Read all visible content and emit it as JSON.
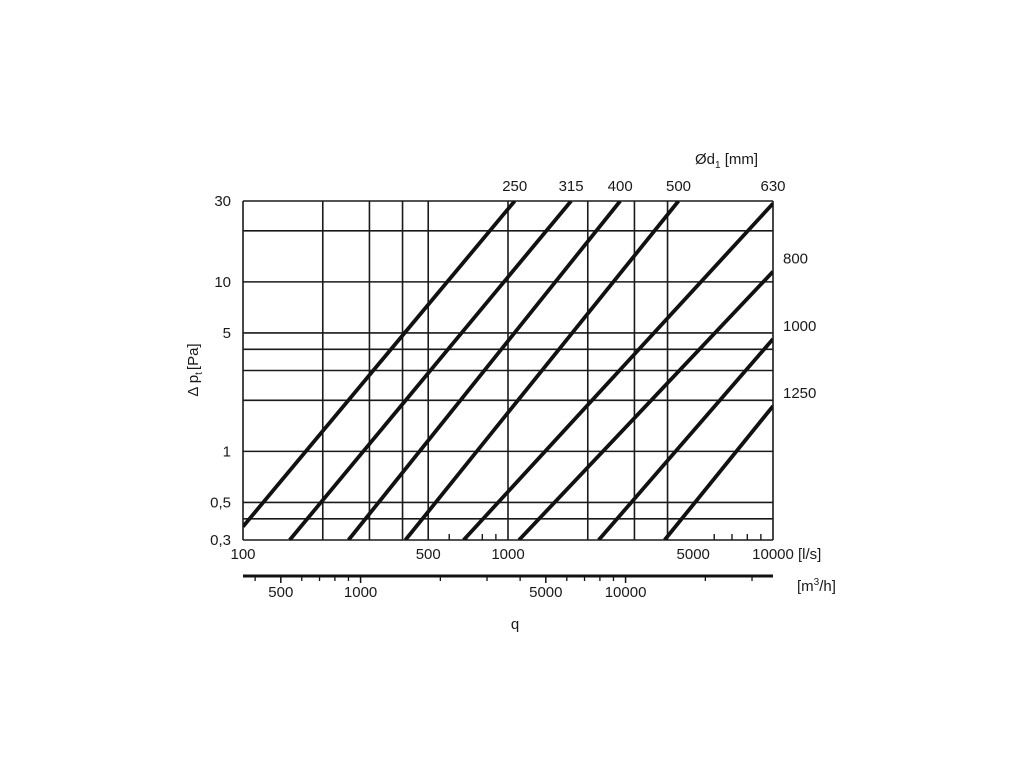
{
  "chart_data": {
    "type": "line",
    "title": "",
    "xlabel": "q",
    "ylabel": "Δ p",
    "ylabel_sub": "t",
    "ylabel_unit": "[Pa]",
    "x_scale": "log",
    "y_scale": "log",
    "xlim": [
      100,
      10000
    ],
    "ylim": [
      0.3,
      30
    ],
    "x_unit": "[l/s]",
    "x2_unit_pre": "[m",
    "x2_unit_sup": "3",
    "x2_unit_post": "/h]",
    "series_title_pre": "Ød",
    "series_title_sub": "1",
    "series_title_post": " [mm]",
    "y_ticks": [
      {
        "value": 30,
        "label": "30"
      },
      {
        "value": 10,
        "label": "10"
      },
      {
        "value": 5,
        "label": "5"
      },
      {
        "value": 1,
        "label": "1"
      },
      {
        "value": 0.5,
        "label": "0,5"
      },
      {
        "value": 0.3,
        "label": "0,3"
      }
    ],
    "y_grid": [
      30,
      20,
      10,
      5,
      4,
      3,
      2,
      1,
      0.5,
      0.4,
      0.3
    ],
    "x_ticks": [
      {
        "value": 100,
        "label": "100"
      },
      {
        "value": 500,
        "label": "500"
      },
      {
        "value": 1000,
        "label": "1000"
      },
      {
        "value": 5000,
        "label": "5000"
      },
      {
        "value": 10000,
        "label": "10000"
      }
    ],
    "x_grid": [
      100,
      200,
      300,
      400,
      500,
      1000,
      2000,
      3000,
      4000,
      10000
    ],
    "x_minor_ticks": [
      600,
      700,
      800,
      900,
      6000,
      7000,
      8000,
      9000
    ],
    "x2_ticks": [
      {
        "value": 500,
        "label": "500"
      },
      {
        "value": 1000,
        "label": "1000"
      },
      {
        "value": 5000,
        "label": "5000"
      },
      {
        "value": 10000,
        "label": "10000"
      }
    ],
    "x2_minor_ticks": [
      400,
      600,
      700,
      800,
      900,
      2000,
      3000,
      4000,
      6000,
      7000,
      8000,
      9000,
      20000,
      30000
    ],
    "series": [
      {
        "name": "250",
        "points": [
          [
            100,
            0.36
          ],
          [
            1060,
            30
          ]
        ]
      },
      {
        "name": "315",
        "points": [
          [
            150,
            0.3
          ],
          [
            1730,
            30
          ]
        ]
      },
      {
        "name": "400",
        "points": [
          [
            250,
            0.3
          ],
          [
            2650,
            30
          ]
        ]
      },
      {
        "name": "500",
        "points": [
          [
            410,
            0.3
          ],
          [
            4400,
            30
          ]
        ]
      },
      {
        "name": "630",
        "points": [
          [
            680,
            0.3
          ],
          [
            10000,
            29
          ]
        ]
      },
      {
        "name": "800",
        "points": [
          [
            1100,
            0.3
          ],
          [
            10000,
            11.5
          ]
        ]
      },
      {
        "name": "1000",
        "points": [
          [
            2200,
            0.3
          ],
          [
            10000,
            4.6
          ]
        ]
      },
      {
        "name": "1250",
        "points": [
          [
            3900,
            0.3
          ],
          [
            10000,
            1.85
          ]
        ]
      }
    ]
  }
}
